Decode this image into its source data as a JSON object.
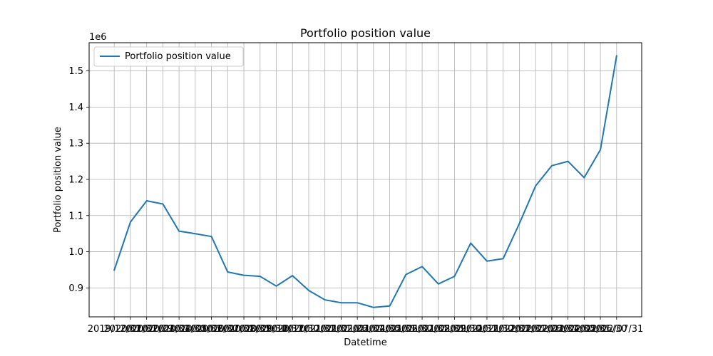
{
  "chart_data": {
    "type": "line",
    "title": "Portfolio position value",
    "xlabel": "Datetime",
    "ylabel": "Portfolio position value",
    "y_offset_label": "1e6",
    "ylim": [
      0.82,
      1.578
    ],
    "yticks": [
      0.9,
      1.0,
      1.1,
      1.2,
      1.3,
      1.4,
      1.5
    ],
    "ytick_labels": [
      "0.9",
      "1.0",
      "1.1",
      "1.2",
      "1.3",
      "1.4",
      "1.5"
    ],
    "x": [
      "2019/12/31",
      "2020/01/31",
      "2020/02/29",
      "2020/03/31",
      "2020/04/30",
      "2020/05/31",
      "2020/06/30",
      "2020/07/31",
      "2020/08/31",
      "2020/09/30",
      "2020/10/31",
      "2020/11/30",
      "2020/12/31",
      "2021/01/31",
      "2021/02/28",
      "2021/03/31",
      "2021/04/30",
      "2021/05/31",
      "2021/06/30",
      "2021/07/31",
      "2021/08/31",
      "2021/09/30",
      "2021/10/31",
      "2021/11/30",
      "2021/12/31",
      "2022/01/31",
      "2022/02/28",
      "2022/03/31",
      "2022/04/30",
      "2022/05/31",
      "2022/06/30",
      "2022/07/31"
    ],
    "series": [
      {
        "name": "Portfolio position value",
        "color": "#1f77b4",
        "values": [
          949000,
          1082000,
          1141000,
          1132000,
          1057000,
          1050000,
          1042000,
          944000,
          935000,
          932000,
          905000,
          934000,
          893000,
          867000,
          859000,
          859000,
          846000,
          850000,
          937000,
          959000,
          911000,
          932000,
          1024000,
          974000,
          981000,
          1078000,
          1182000,
          1238000,
          1250000,
          1205000,
          1282000,
          1542000
        ]
      }
    ],
    "grid": true,
    "legend": "upper left"
  }
}
